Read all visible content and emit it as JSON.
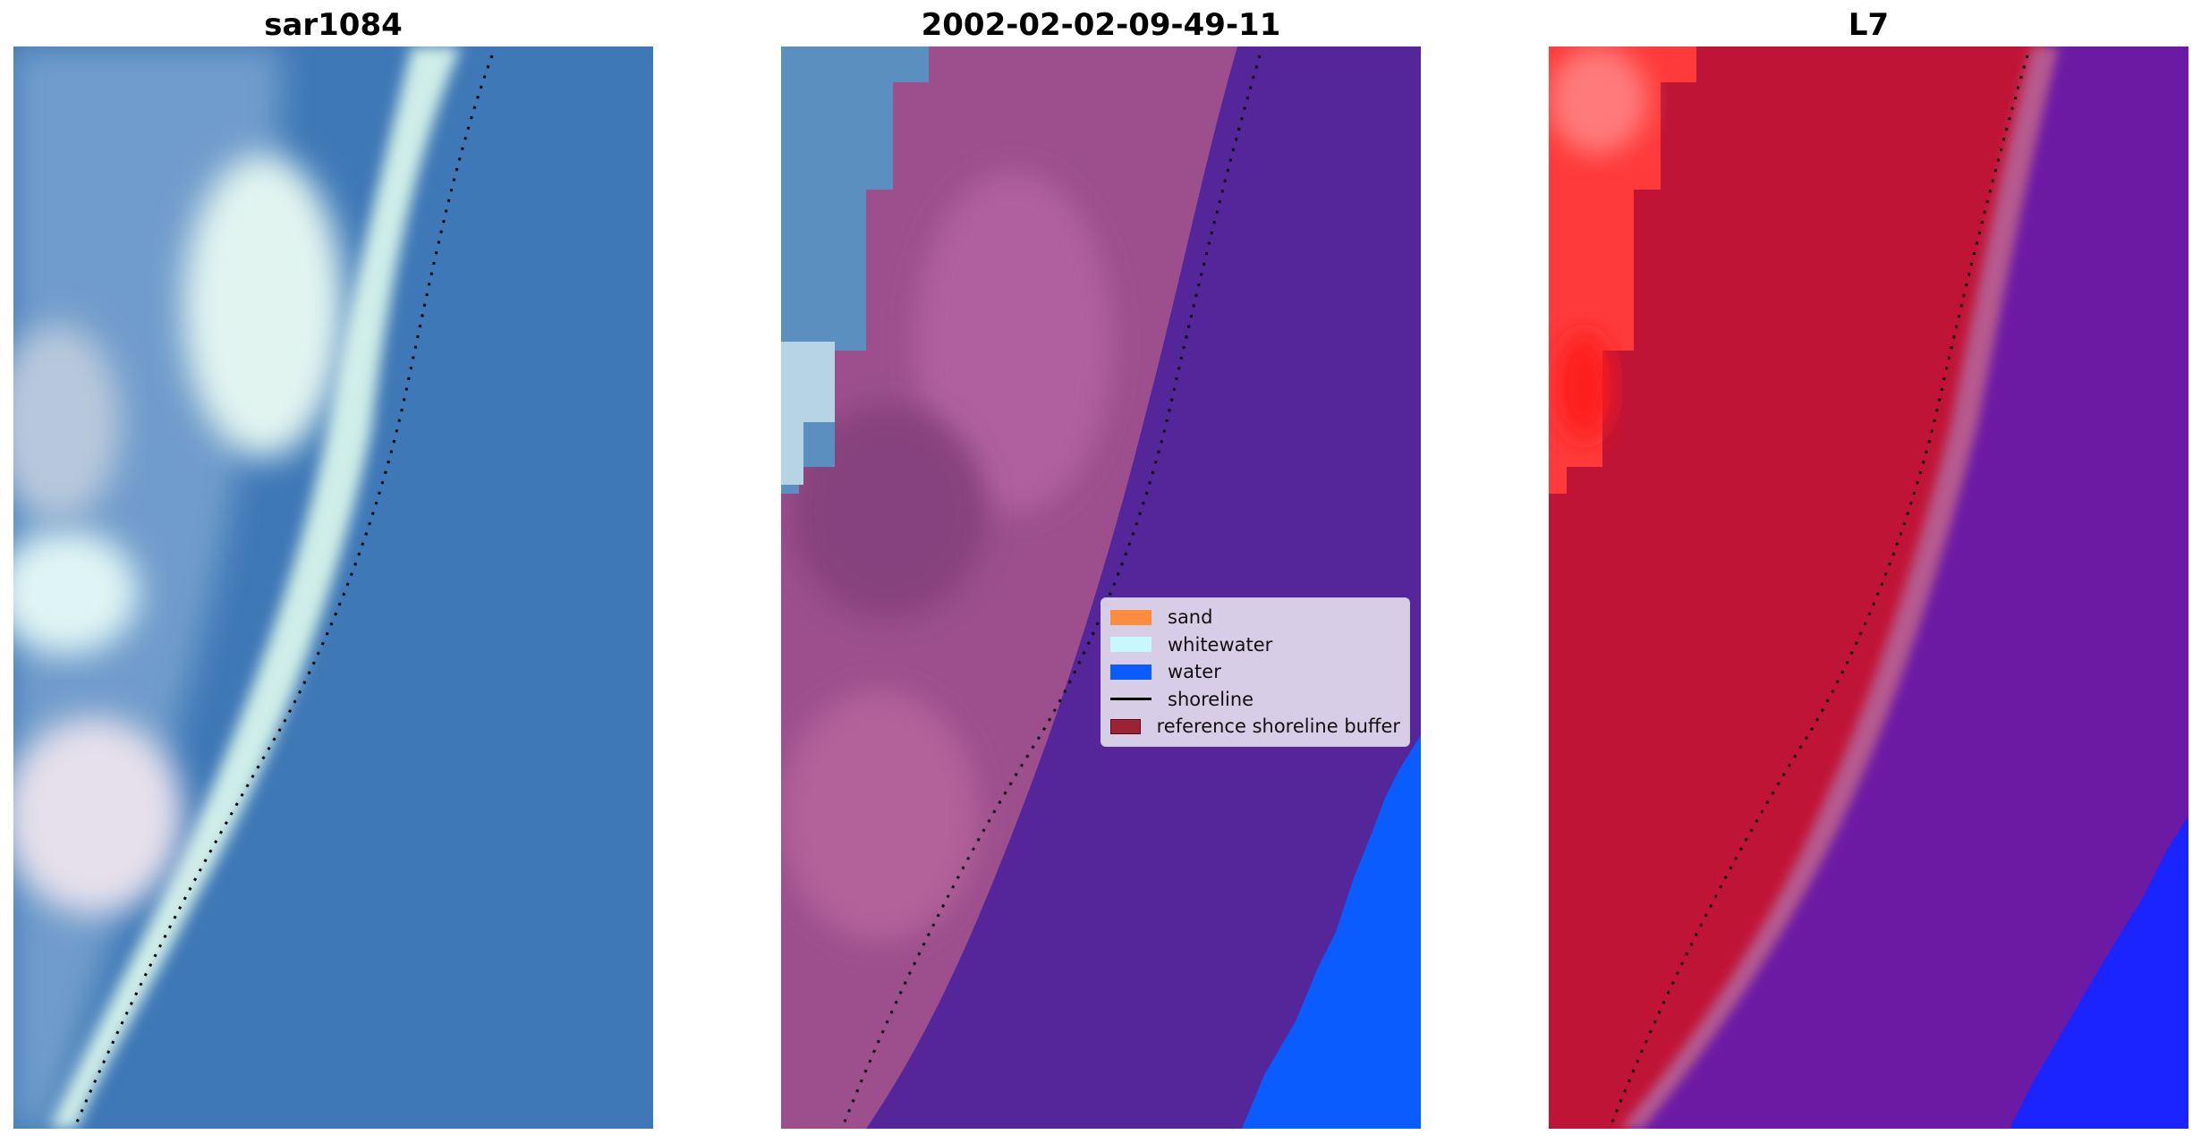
{
  "panels": [
    {
      "title": "sar1084"
    },
    {
      "title": "2002-02-02-09-49-11"
    },
    {
      "title": "L7"
    }
  ],
  "legend": {
    "items": [
      {
        "label": "sand",
        "kind": "patch",
        "color": "#ff8c3c"
      },
      {
        "label": "whitewater",
        "kind": "patch",
        "color": "#c8f8ff"
      },
      {
        "label": "water",
        "kind": "patch",
        "color": "#0a5cff"
      },
      {
        "label": "shoreline",
        "kind": "line",
        "color": "#000000"
      },
      {
        "label": "reference shoreline buffer",
        "kind": "patch",
        "color": "#9b2335"
      }
    ]
  },
  "colors": {
    "ocean_blue": "#3e78b6",
    "classified_water_overlay": "#55259a",
    "water_class": "#0a5cff",
    "sand_overlay": "#9c4f8c",
    "index_land_red": "#c01436",
    "index_water_purple": "#6c1aa4",
    "index_bright_red": "#ff2a2a"
  }
}
